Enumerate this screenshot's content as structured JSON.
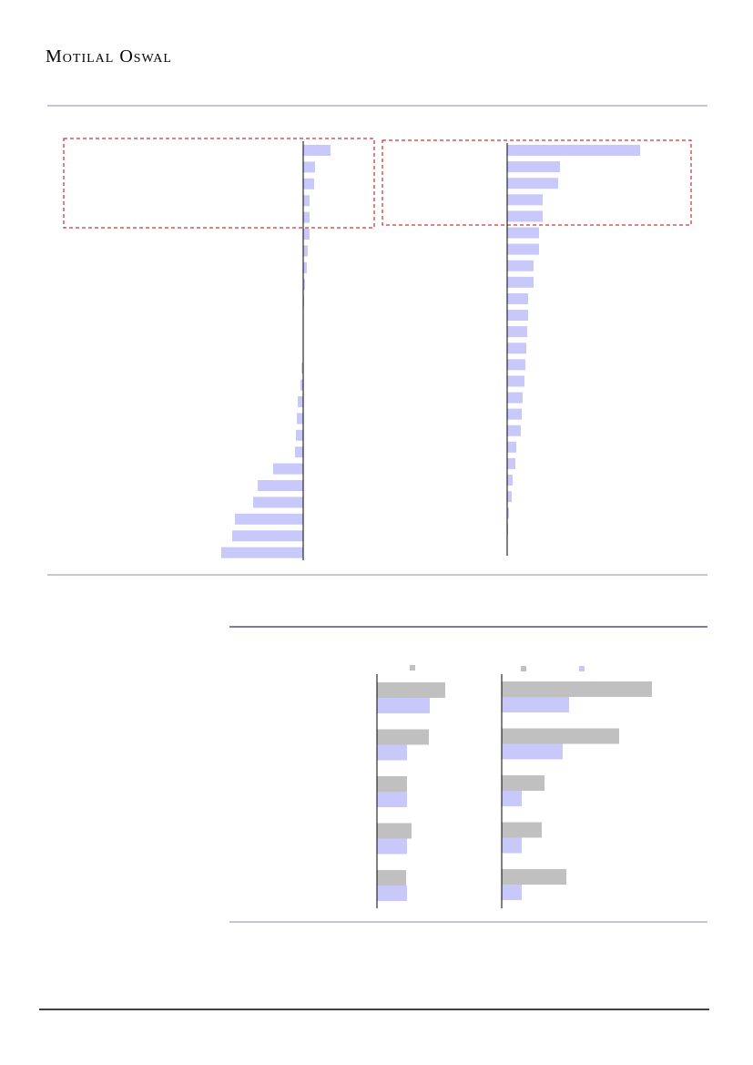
{
  "header": {
    "title": "Motilal Oswal"
  },
  "chart_data": [
    {
      "type": "bar",
      "orientation": "horizontal",
      "xlim": [
        -100,
        80
      ],
      "series": [
        {
          "color": "#c8c8fa",
          "values": [
            30,
            13,
            12,
            7,
            7,
            7,
            5,
            4,
            2,
            1,
            0.5,
            0.5,
            0,
            -2,
            -3,
            -6,
            -7,
            -8,
            -9,
            -33,
            -50,
            -55,
            -75,
            -78,
            -90
          ]
        }
      ]
    },
    {
      "type": "bar",
      "orientation": "horizontal",
      "xlim": [
        0,
        200
      ],
      "series": [
        {
          "color": "#c8c8fa",
          "values": [
            146,
            58,
            56,
            39,
            39,
            35,
            35,
            29,
            29,
            23,
            23,
            22,
            21,
            20,
            19,
            17,
            16,
            15,
            10,
            9,
            6,
            5,
            2,
            1
          ]
        }
      ]
    },
    {
      "type": "bar",
      "orientation": "horizontal",
      "xlim": [
        0,
        100
      ],
      "series": [
        {
          "color": "#c0c0c0",
          "values": [
            75,
            57,
            33,
            38,
            32
          ]
        },
        {
          "color": "#c8c8fa",
          "values": [
            58,
            33,
            33,
            33,
            33
          ]
        }
      ]
    },
    {
      "type": "bar",
      "orientation": "horizontal",
      "xlim": [
        0,
        200
      ],
      "series": [
        {
          "color": "#c0c0c0",
          "values": [
            165,
            129,
            47,
            44,
            71
          ]
        },
        {
          "color": "#c8c8fa",
          "values": [
            74,
            67,
            22,
            22,
            22
          ]
        }
      ]
    }
  ]
}
